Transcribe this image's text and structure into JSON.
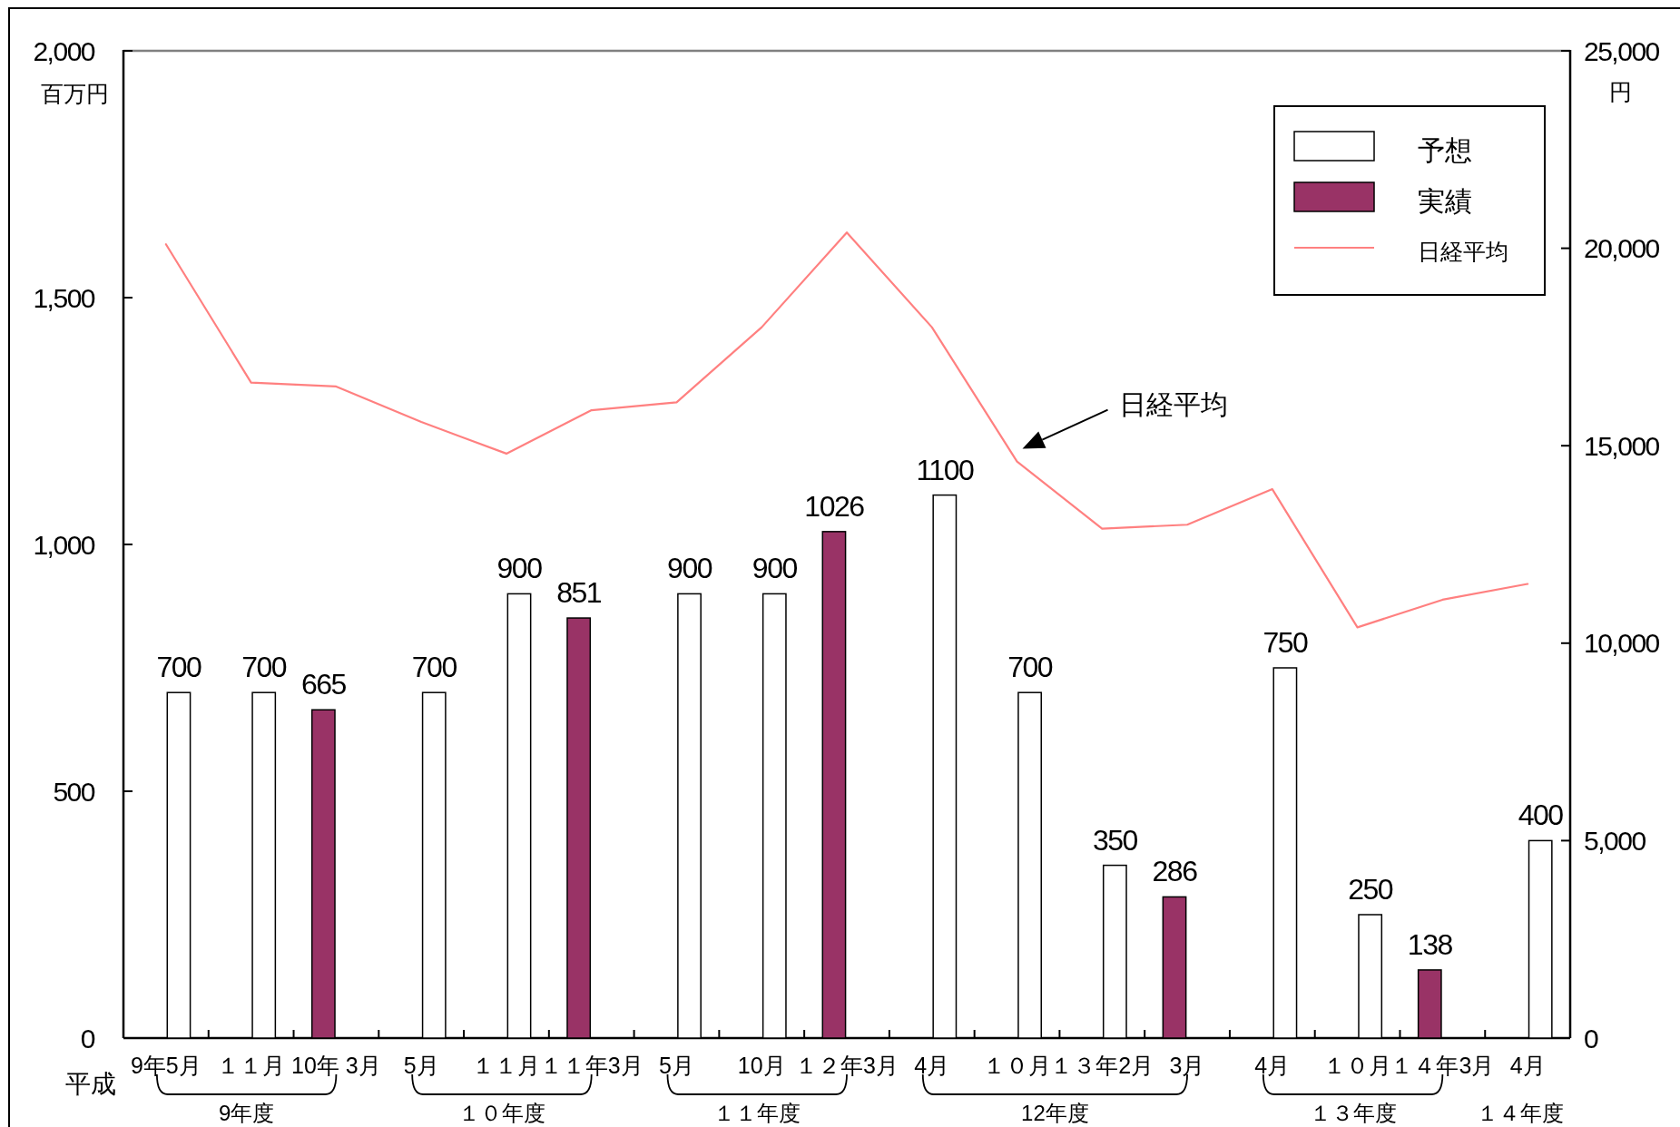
{
  "chart_data": {
    "type": "bar",
    "categories": [
      "9年5月",
      "１１月",
      "10年 3月",
      "5月",
      "１１月",
      "１１年3月",
      "5月",
      "10月",
      "１２年3月",
      "4月",
      "１０月",
      "１３年2月",
      "3月",
      "4月",
      "１０月",
      "１４年3月",
      "4月"
    ],
    "series": [
      {
        "name": "予想",
        "color": "#ffffff",
        "values": [
          700,
          700,
          null,
          700,
          900,
          null,
          900,
          900,
          null,
          1100,
          700,
          350,
          null,
          750,
          250,
          null,
          400
        ],
        "value_labels": [
          "700",
          "700",
          null,
          "700",
          "900",
          null,
          "900",
          "900",
          null,
          "1100",
          "700",
          "350",
          null,
          "750",
          "250",
          null,
          "400"
        ]
      },
      {
        "name": "実績",
        "color": "#993366",
        "values": [
          null,
          null,
          665,
          null,
          null,
          851,
          null,
          null,
          1026,
          null,
          null,
          null,
          286,
          null,
          null,
          138,
          null
        ],
        "value_labels": [
          null,
          null,
          "665",
          null,
          null,
          "851",
          null,
          null,
          "1026",
          null,
          null,
          null,
          "286",
          null,
          null,
          "138",
          null
        ]
      },
      {
        "name": "日経平均",
        "type": "line",
        "axis": "y2",
        "color": "#ff8080",
        "values": [
          20100,
          16600,
          16500,
          15600,
          14800,
          15900,
          16100,
          18000,
          20400,
          18000,
          14600,
          12900,
          13000,
          13900,
          10400,
          11100,
          11500
        ]
      }
    ],
    "xlabel": "平成",
    "ylabel": "百万円",
    "y2label": "円",
    "ylim": [
      0,
      2000
    ],
    "yticks": [
      0,
      500,
      {
        "value": 1000,
        "label": "1,000"
      },
      {
        "value": 1500,
        "label": "1,500"
      },
      {
        "value": 2000,
        "label": "2,000"
      }
    ],
    "y2lim": [
      0,
      25000
    ],
    "y2ticks": [
      0,
      {
        "value": 5000,
        "label": "5,000"
      },
      {
        "value": 10000,
        "label": "10,000"
      },
      {
        "value": 15000,
        "label": "15,000"
      },
      {
        "value": 20000,
        "label": "20,000"
      },
      {
        "value": 25000,
        "label": "25,000"
      }
    ],
    "legend": "top right",
    "annotations": [
      "日経平均",
      "9年度",
      "１０年度",
      "１１年度",
      "12年度",
      "１３年度",
      "１４年度"
    ]
  }
}
